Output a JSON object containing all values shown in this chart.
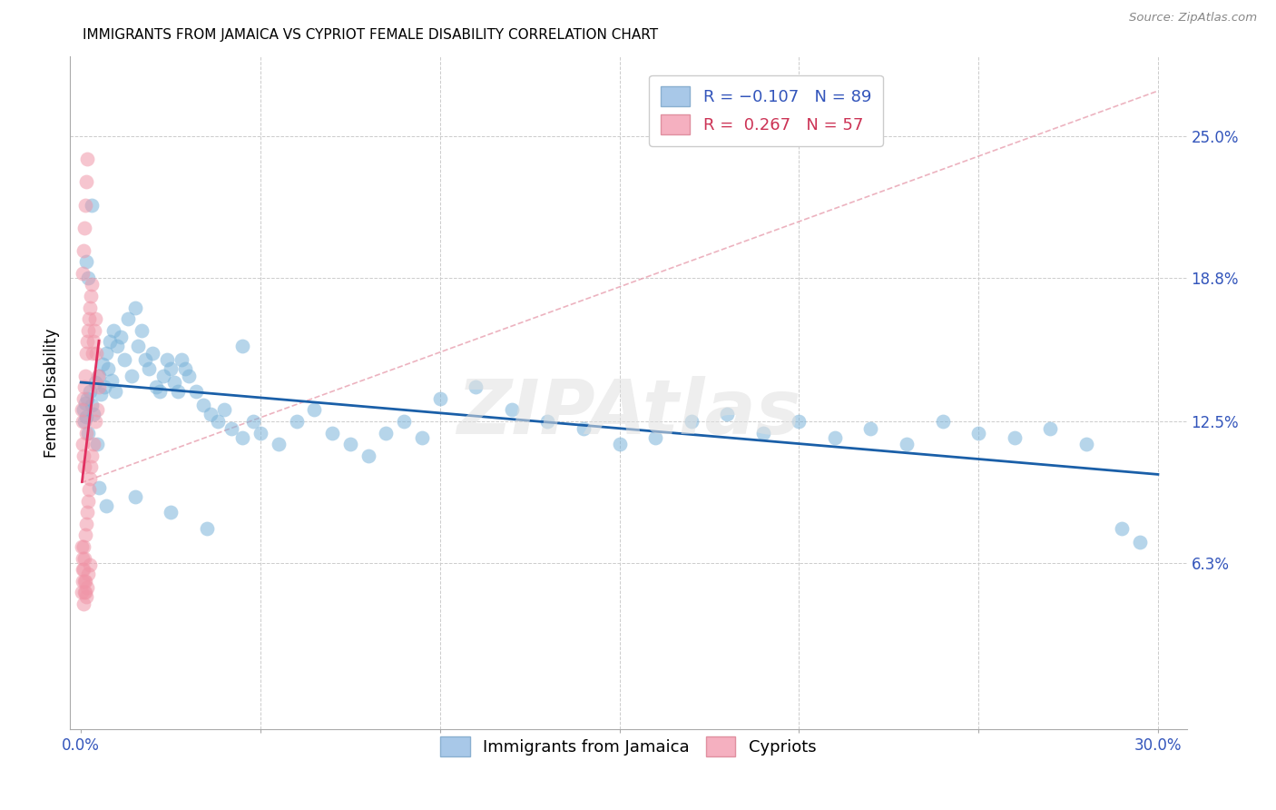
{
  "title": "IMMIGRANTS FROM JAMAICA VS CYPRIOT FEMALE DISABILITY CORRELATION CHART",
  "source": "Source: ZipAtlas.com",
  "ylabel": "Female Disability",
  "right_yticks": [
    "25.0%",
    "18.8%",
    "12.5%",
    "6.3%"
  ],
  "right_ytick_values": [
    0.25,
    0.188,
    0.125,
    0.063
  ],
  "xlim": [
    -0.003,
    0.308
  ],
  "ylim": [
    -0.01,
    0.285
  ],
  "jamaica_color": "#7ab3d9",
  "cypriot_color": "#f096a8",
  "grid_color": "#cccccc",
  "watermark": "ZIPAtlas",
  "title_fontsize": 11,
  "tick_fontsize": 12,
  "legend_fontsize": 13,
  "jamaica_scatter_x": [
    0.0008,
    0.001,
    0.0012,
    0.0015,
    0.0018,
    0.002,
    0.0025,
    0.003,
    0.0035,
    0.004,
    0.0045,
    0.005,
    0.0055,
    0.006,
    0.0065,
    0.007,
    0.0075,
    0.008,
    0.0085,
    0.009,
    0.0095,
    0.01,
    0.011,
    0.012,
    0.013,
    0.014,
    0.015,
    0.016,
    0.017,
    0.018,
    0.019,
    0.02,
    0.021,
    0.022,
    0.023,
    0.024,
    0.025,
    0.026,
    0.027,
    0.028,
    0.029,
    0.03,
    0.032,
    0.034,
    0.036,
    0.038,
    0.04,
    0.042,
    0.045,
    0.048,
    0.05,
    0.055,
    0.06,
    0.065,
    0.07,
    0.075,
    0.08,
    0.085,
    0.09,
    0.095,
    0.1,
    0.11,
    0.12,
    0.13,
    0.14,
    0.15,
    0.16,
    0.17,
    0.18,
    0.19,
    0.2,
    0.21,
    0.22,
    0.23,
    0.24,
    0.25,
    0.26,
    0.27,
    0.28,
    0.29,
    0.295,
    0.0015,
    0.002,
    0.003,
    0.005,
    0.007,
    0.015,
    0.025,
    0.035,
    0.045
  ],
  "jamaica_scatter_y": [
    0.13,
    0.125,
    0.133,
    0.127,
    0.135,
    0.12,
    0.138,
    0.132,
    0.128,
    0.142,
    0.115,
    0.145,
    0.137,
    0.15,
    0.14,
    0.155,
    0.148,
    0.16,
    0.143,
    0.165,
    0.138,
    0.158,
    0.162,
    0.152,
    0.17,
    0.145,
    0.175,
    0.158,
    0.165,
    0.152,
    0.148,
    0.155,
    0.14,
    0.138,
    0.145,
    0.152,
    0.148,
    0.142,
    0.138,
    0.152,
    0.148,
    0.145,
    0.138,
    0.132,
    0.128,
    0.125,
    0.13,
    0.122,
    0.118,
    0.125,
    0.12,
    0.115,
    0.125,
    0.13,
    0.12,
    0.115,
    0.11,
    0.12,
    0.125,
    0.118,
    0.135,
    0.14,
    0.13,
    0.125,
    0.122,
    0.115,
    0.118,
    0.125,
    0.128,
    0.12,
    0.125,
    0.118,
    0.122,
    0.115,
    0.125,
    0.12,
    0.118,
    0.122,
    0.115,
    0.078,
    0.072,
    0.195,
    0.188,
    0.22,
    0.096,
    0.088,
    0.092,
    0.085,
    0.078,
    0.158
  ],
  "cypriot_scatter_x": [
    0.0003,
    0.0005,
    0.0005,
    0.0008,
    0.0008,
    0.001,
    0.001,
    0.0012,
    0.0012,
    0.0015,
    0.0015,
    0.0015,
    0.0018,
    0.0018,
    0.002,
    0.002,
    0.0022,
    0.0022,
    0.0025,
    0.0025,
    0.0028,
    0.0028,
    0.003,
    0.003,
    0.0032,
    0.0035,
    0.0035,
    0.0038,
    0.004,
    0.004,
    0.0042,
    0.0045,
    0.0048,
    0.005,
    0.0005,
    0.0008,
    0.001,
    0.0012,
    0.0015,
    0.0018,
    0.0003,
    0.0005,
    0.0008,
    0.001,
    0.0012,
    0.0005,
    0.0008,
    0.001,
    0.0003,
    0.0005,
    0.0008,
    0.001,
    0.0012,
    0.0015,
    0.0018,
    0.002,
    0.0025
  ],
  "cypriot_scatter_y": [
    0.13,
    0.125,
    0.06,
    0.135,
    0.07,
    0.14,
    0.065,
    0.145,
    0.075,
    0.155,
    0.08,
    0.12,
    0.16,
    0.085,
    0.165,
    0.09,
    0.17,
    0.095,
    0.175,
    0.1,
    0.18,
    0.105,
    0.185,
    0.11,
    0.155,
    0.16,
    0.115,
    0.165,
    0.17,
    0.125,
    0.155,
    0.13,
    0.145,
    0.14,
    0.19,
    0.2,
    0.21,
    0.22,
    0.23,
    0.24,
    0.05,
    0.055,
    0.045,
    0.05,
    0.055,
    0.115,
    0.11,
    0.105,
    0.07,
    0.065,
    0.06,
    0.055,
    0.05,
    0.048,
    0.052,
    0.058,
    0.062
  ],
  "diag_line_color": "#f096a8",
  "trendline_jamaica_color": "#1a5fa8",
  "trendline_cypriot_color": "#e03060"
}
